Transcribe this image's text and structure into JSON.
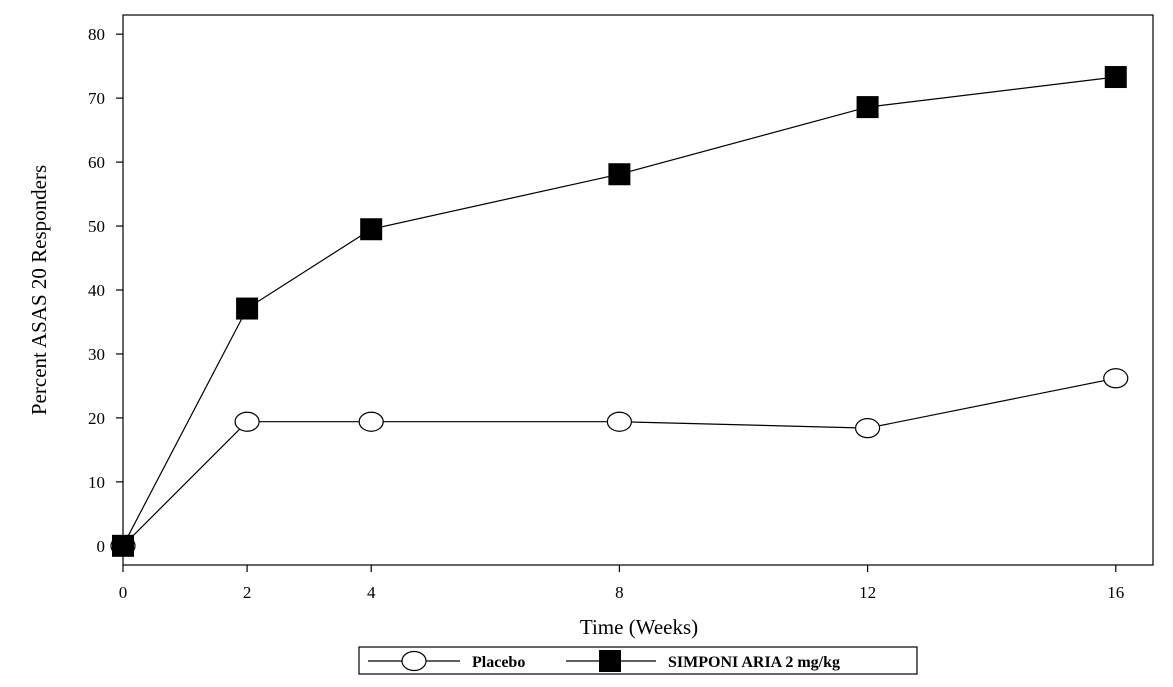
{
  "chart_data": {
    "type": "line",
    "xlabel": "Time (Weeks)",
    "ylabel": "Percent ASAS 20 Responders",
    "x": [
      0,
      2,
      4,
      8,
      12,
      16
    ],
    "x_ticks": [
      "0",
      "2",
      "4",
      "8",
      "12",
      "16"
    ],
    "y_ticks": [
      "0",
      "10",
      "20",
      "30",
      "40",
      "50",
      "60",
      "70",
      "80"
    ],
    "xlim": [
      0,
      16.6
    ],
    "ylim": [
      -3,
      83
    ],
    "grid": false,
    "legend_position": "bottom-center",
    "series": [
      {
        "name": "Placebo",
        "marker": "open-circle",
        "values": [
          0,
          19.4,
          19.4,
          19.4,
          18.4,
          26.2
        ]
      },
      {
        "name": "SIMPONI ARIA 2 mg/kg",
        "marker": "filled-square",
        "values": [
          0,
          37.1,
          49.5,
          58.1,
          68.6,
          73.3
        ]
      }
    ]
  }
}
